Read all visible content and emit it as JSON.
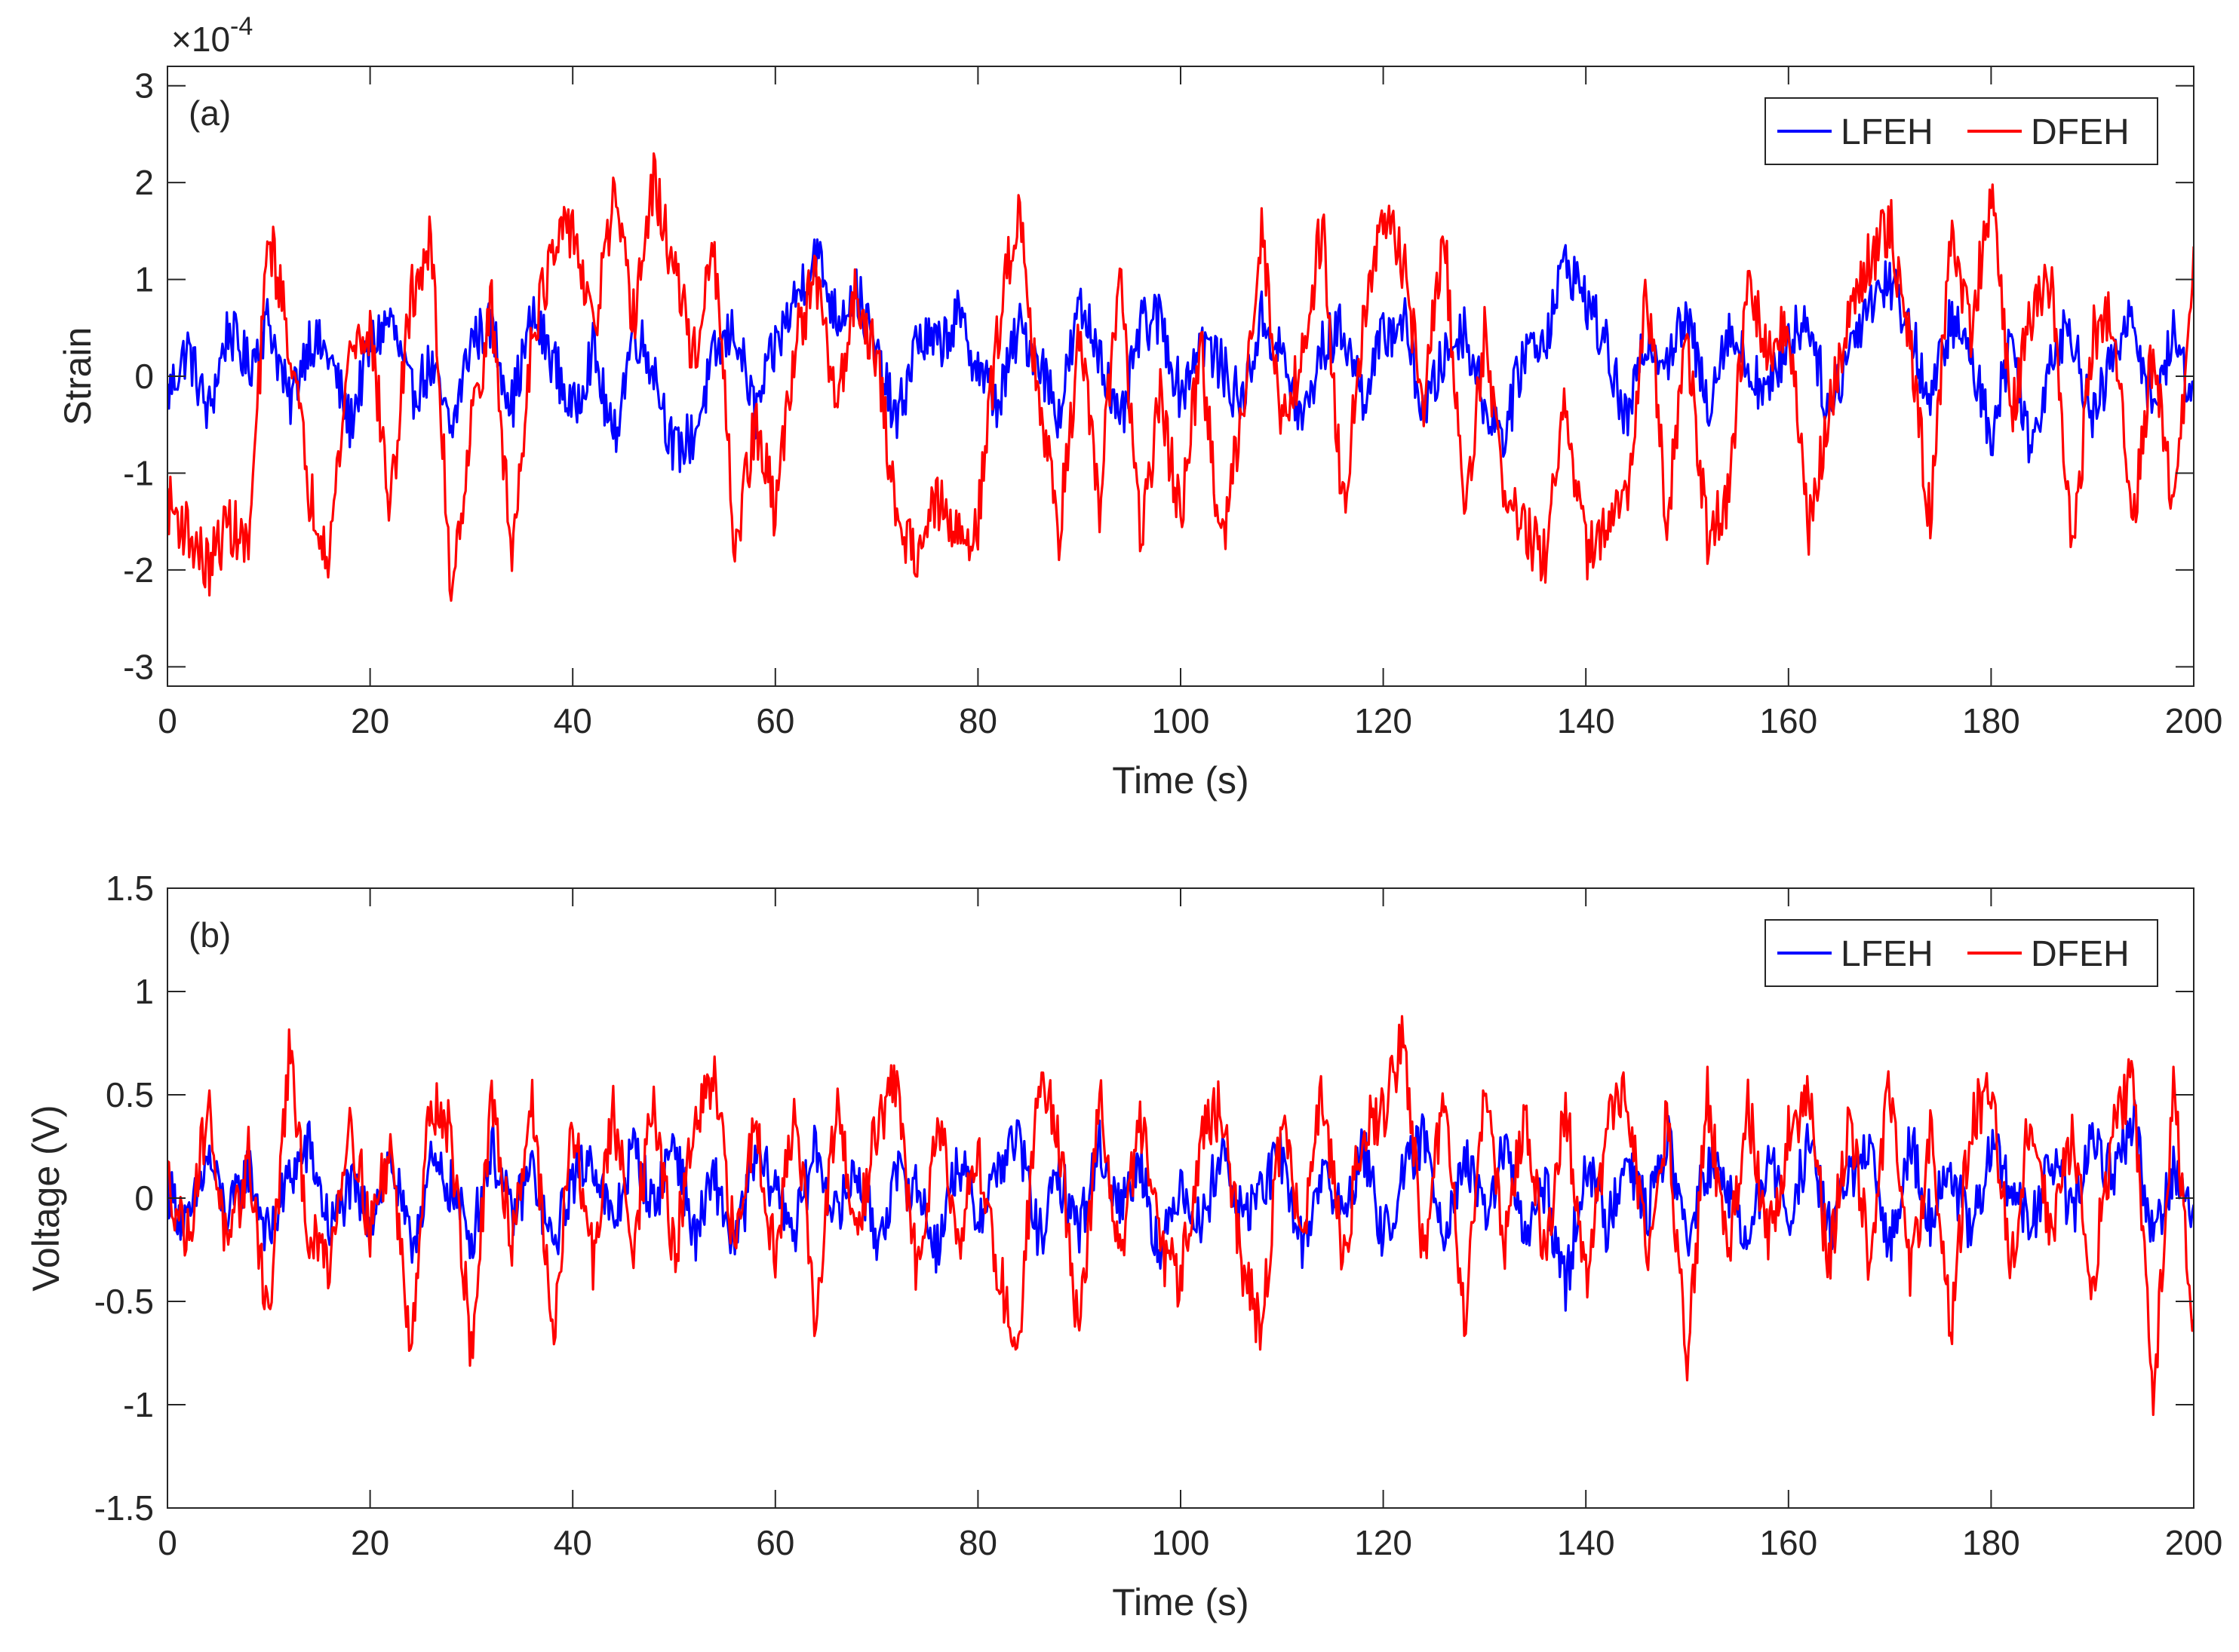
{
  "chart_data": [
    {
      "type": "line",
      "panel_label": "(a)",
      "xlabel": "Time (s)",
      "ylabel": "Strain",
      "exponent_label": {
        "base": "×10",
        "power": "-4"
      },
      "xlim": [
        0,
        200
      ],
      "ylim": [
        -3.2,
        3.2
      ],
      "xticks": [
        0,
        20,
        40,
        60,
        80,
        100,
        120,
        140,
        160,
        180,
        200
      ],
      "xtick_labels": [
        "0",
        "20",
        "40",
        "60",
        "80",
        "100",
        "120",
        "140",
        "160",
        "180",
        "200"
      ],
      "yticks": [
        -3,
        -2,
        -1,
        0,
        1,
        2,
        3
      ],
      "ytick_labels": [
        "-3",
        "-2",
        "-1",
        "0",
        "1",
        "2",
        "3"
      ],
      "grid": false,
      "legend_position": "top-right",
      "series": [
        {
          "name": "LFEH",
          "color": "#0000ff",
          "x": [
            0,
            2,
            4,
            6,
            8,
            10,
            12,
            14,
            16,
            18,
            20,
            22,
            24,
            26,
            28,
            30,
            32,
            34,
            36,
            38,
            40,
            42,
            44,
            46,
            48,
            50,
            52,
            54,
            56,
            58,
            60,
            62,
            64,
            66,
            68,
            70,
            72,
            74,
            76,
            78,
            80,
            82,
            84,
            86,
            88,
            90,
            92,
            94,
            96,
            98,
            100,
            102,
            104,
            106,
            108,
            110,
            112,
            114,
            116,
            118,
            120,
            122,
            124,
            126,
            128,
            130,
            132,
            134,
            136,
            138,
            140,
            142,
            144,
            146,
            148,
            150,
            152,
            154,
            156,
            158,
            160,
            162,
            164,
            166,
            168,
            170,
            172,
            174,
            176,
            178,
            180,
            182,
            184,
            186,
            188,
            190,
            192,
            194,
            196,
            198,
            200
          ],
          "y": [
            -0.2,
            0.3,
            -0.4,
            0.5,
            0.1,
            0.6,
            -0.3,
            0.4,
            0.2,
            -0.5,
            0.3,
            0.6,
            -0.2,
            0.1,
            -0.6,
            0.4,
            0.5,
            -0.3,
            0.6,
            0.2,
            -0.4,
            0.3,
            -0.7,
            0.5,
            0.1,
            -0.8,
            -0.6,
            0.2,
            0.5,
            -0.4,
            0.3,
            0.8,
            1.3,
            0.6,
            0.9,
            0.2,
            -0.5,
            0.4,
            0.3,
            0.6,
            0.1,
            -0.3,
            0.5,
            0.2,
            -0.4,
            0.7,
            0.3,
            -0.6,
            0.5,
            0.6,
            -0.2,
            0.4,
            0.1,
            -0.3,
            0.6,
            0.2,
            -0.5,
            0.3,
            0.5,
            -0.2,
            0.4,
            0.6,
            -0.4,
            0.2,
            0.5,
            -0.3,
            -0.6,
            0.3,
            0.4,
            1.2,
            0.8,
            0.3,
            -0.5,
            0.4,
            0.2,
            0.6,
            -0.3,
            0.5,
            0.1,
            -0.2,
            0.4,
            0.6,
            -0.4,
            0.3,
            0.8,
            1.0,
            0.5,
            -0.3,
            0.6,
            0.2,
            -0.6,
            0.4,
            -0.8,
            0.3,
            0.5,
            -0.5,
            0.2,
            0.6,
            -0.3,
            0.4,
            -0.2
          ]
        },
        {
          "name": "DFEH",
          "color": "#ff0000",
          "x": [
            0,
            2,
            4,
            6,
            8,
            10,
            12,
            14,
            16,
            18,
            20,
            22,
            24,
            26,
            28,
            30,
            32,
            34,
            36,
            38,
            40,
            42,
            44,
            46,
            48,
            50,
            52,
            54,
            56,
            58,
            60,
            62,
            64,
            66,
            68,
            70,
            72,
            74,
            76,
            78,
            80,
            82,
            84,
            86,
            88,
            90,
            92,
            94,
            96,
            98,
            100,
            102,
            104,
            106,
            108,
            110,
            112,
            114,
            116,
            118,
            120,
            122,
            124,
            126,
            128,
            130,
            132,
            134,
            136,
            138,
            140,
            142,
            144,
            146,
            148,
            150,
            152,
            154,
            156,
            158,
            160,
            162,
            164,
            166,
            168,
            170,
            172,
            174,
            176,
            178,
            180,
            182,
            184,
            186,
            188,
            190,
            192,
            194,
            196,
            198,
            200
          ],
          "y": [
            -1.3,
            -1.6,
            -2.0,
            -1.5,
            -1.8,
            1.5,
            0.4,
            -1.2,
            -1.8,
            0.3,
            0.5,
            -1.4,
            0.8,
            1.4,
            -2.2,
            -0.5,
            0.7,
            -1.9,
            0.5,
            1.2,
            1.6,
            0.4,
            1.8,
            0.6,
            2.0,
            1.1,
            0.2,
            1.3,
            -1.8,
            -0.5,
            -1.4,
            0.4,
            1.0,
            -0.3,
            0.9,
            0.2,
            -1.5,
            -1.8,
            -1.3,
            -1.7,
            -1.5,
            0.5,
            1.8,
            -0.2,
            -1.6,
            0.4,
            -1.4,
            1.2,
            -1.7,
            -0.2,
            -1.5,
            0.3,
            -1.8,
            -0.4,
            1.5,
            -0.5,
            0.2,
            1.6,
            -1.4,
            0.6,
            1.6,
            1.2,
            -0.3,
            1.5,
            -1.4,
            0.4,
            -1.2,
            -1.6,
            -1.9,
            -0.3,
            -1.8,
            -1.6,
            -1.3,
            1.0,
            -1.5,
            0.4,
            -1.7,
            -1.3,
            0.9,
            0.3,
            0.5,
            -1.6,
            -0.4,
            0.7,
            1.2,
            1.6,
            0.3,
            -1.5,
            1.5,
            0.5,
            1.9,
            -0.4,
            0.6,
            1.0,
            -1.9,
            0.4,
            0.6,
            -1.6,
            0.3,
            -1.5,
            1.1
          ]
        }
      ]
    },
    {
      "type": "line",
      "panel_label": "(b)",
      "xlabel": "Time (s)",
      "ylabel": "Voltage (V)",
      "xlim": [
        0,
        200
      ],
      "ylim": [
        -1.5,
        1.5
      ],
      "xticks": [
        0,
        20,
        40,
        60,
        80,
        100,
        120,
        140,
        160,
        180,
        200
      ],
      "xtick_labels": [
        "0",
        "20",
        "40",
        "60",
        "80",
        "100",
        "120",
        "140",
        "160",
        "180",
        "200"
      ],
      "yticks": [
        -1.5,
        -1,
        -0.5,
        0,
        0.5,
        1,
        1.5
      ],
      "ytick_labels": [
        "-1.5",
        "-1",
        "-0.5",
        "0",
        "0.5",
        "1",
        "1.5"
      ],
      "grid": false,
      "legend_position": "top-right",
      "series": [
        {
          "name": "LFEH",
          "color": "#0000ff",
          "x": [
            0,
            2,
            4,
            6,
            8,
            10,
            12,
            14,
            16,
            18,
            20,
            22,
            24,
            26,
            28,
            30,
            32,
            34,
            36,
            38,
            40,
            42,
            44,
            46,
            48,
            50,
            52,
            54,
            56,
            58,
            60,
            62,
            64,
            66,
            68,
            70,
            72,
            74,
            76,
            78,
            80,
            82,
            84,
            86,
            88,
            90,
            92,
            94,
            96,
            98,
            100,
            102,
            104,
            106,
            108,
            110,
            112,
            114,
            116,
            118,
            120,
            122,
            124,
            126,
            128,
            130,
            132,
            134,
            136,
            138,
            140,
            142,
            144,
            146,
            148,
            150,
            152,
            154,
            156,
            158,
            160,
            162,
            164,
            166,
            168,
            170,
            172,
            174,
            176,
            178,
            180,
            182,
            184,
            186,
            188,
            190,
            192,
            194,
            196,
            198,
            200
          ],
          "y": [
            0.05,
            -0.15,
            0.2,
            -0.1,
            0.15,
            -0.2,
            0.1,
            0.25,
            -0.15,
            0.05,
            -0.1,
            0.2,
            -0.25,
            0.15,
            0.05,
            -0.2,
            0.25,
            -0.1,
            0.15,
            -0.25,
            0.1,
            0.2,
            -0.15,
            0.25,
            -0.05,
            0.3,
            -0.2,
            0.1,
            -0.25,
            0.2,
            0.05,
            -0.15,
            0.25,
            -0.1,
            0.15,
            -0.2,
            0.1,
            0.05,
            -0.25,
            0.2,
            -0.1,
            0.15,
            0.3,
            -0.2,
            0.1,
            -0.15,
            0.25,
            -0.05,
            0.2,
            -0.3,
            0.1,
            -0.15,
            0.25,
            -0.1,
            0.05,
            0.2,
            -0.25,
            0.15,
            -0.1,
            0.25,
            -0.2,
            0.1,
            0.3,
            -0.15,
            0.2,
            -0.1,
            0.25,
            -0.2,
            0.05,
            -0.45,
            0.2,
            -0.15,
            0.25,
            -0.1,
            0.3,
            -0.2,
            0.15,
            0.05,
            -0.25,
            0.2,
            -0.1,
            0.25,
            -0.15,
            0.1,
            0.2,
            -0.25,
            0.3,
            -0.1,
            0.15,
            -0.2,
            0.25,
            0.05,
            -0.15,
            0.2,
            -0.1,
            0.3,
            0.1,
            0.4,
            -0.2,
            0.15,
            -0.1
          ]
        },
        {
          "name": "DFEH",
          "color": "#ff0000",
          "x": [
            0,
            2,
            4,
            6,
            8,
            10,
            12,
            14,
            16,
            18,
            20,
            22,
            24,
            26,
            28,
            30,
            32,
            34,
            36,
            38,
            40,
            42,
            44,
            46,
            48,
            50,
            52,
            54,
            56,
            58,
            60,
            62,
            64,
            66,
            68,
            70,
            72,
            74,
            76,
            78,
            80,
            82,
            84,
            86,
            88,
            90,
            92,
            94,
            96,
            98,
            100,
            102,
            104,
            106,
            108,
            110,
            112,
            114,
            116,
            118,
            120,
            122,
            124,
            126,
            128,
            130,
            132,
            134,
            136,
            138,
            140,
            142,
            144,
            146,
            148,
            150,
            152,
            154,
            156,
            158,
            160,
            162,
            164,
            166,
            168,
            170,
            172,
            174,
            176,
            178,
            180,
            182,
            184,
            186,
            188,
            190,
            192,
            194,
            196,
            198,
            200
          ],
          "y": [
            0.1,
            -0.2,
            0.45,
            -0.3,
            0.2,
            -0.6,
            0.7,
            -0.2,
            -0.3,
            0.4,
            -0.15,
            0.25,
            -0.7,
            0.5,
            0.3,
            -0.75,
            0.45,
            -0.2,
            0.5,
            -0.7,
            0.35,
            -0.3,
            0.4,
            -0.2,
            0.45,
            -0.3,
            0.35,
            0.55,
            -0.25,
            0.4,
            -0.3,
            0.5,
            -0.65,
            0.45,
            -0.2,
            0.35,
            0.55,
            -0.4,
            0.45,
            -0.2,
            0.2,
            -0.35,
            -0.75,
            0.65,
            0.3,
            -0.7,
            0.5,
            -0.3,
            0.4,
            -0.25,
            -0.4,
            0.3,
            0.45,
            -0.3,
            -0.65,
            0.4,
            -0.2,
            0.5,
            -0.3,
            0.35,
            0.4,
            0.8,
            -0.3,
            0.5,
            -0.6,
            0.55,
            -0.2,
            0.4,
            -0.3,
            0.45,
            -0.4,
            0.3,
            0.55,
            -0.25,
            0.4,
            -0.85,
            0.5,
            -0.3,
            0.45,
            -0.2,
            0.3,
            0.5,
            -0.35,
            0.4,
            -0.3,
            0.55,
            -0.4,
            0.3,
            -0.65,
            0.4,
            0.5,
            -0.3,
            0.45,
            -0.25,
            0.35,
            -0.4,
            0.3,
            0.6,
            -1.0,
            0.55,
            -0.7
          ]
        }
      ]
    }
  ]
}
